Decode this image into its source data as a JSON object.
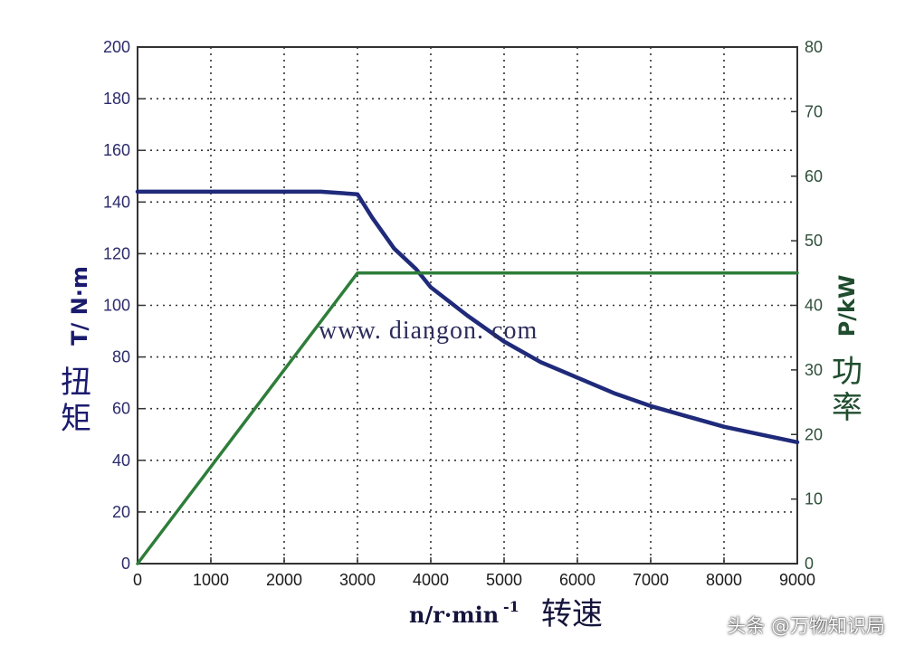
{
  "chart_data": {
    "type": "line",
    "xlabel_math": "n/r·min",
    "xlabel_sup": "-1",
    "xlabel_cn": "转速",
    "ylabel_left_cn": "扭矩",
    "ylabel_left_unit": "T/ N·m",
    "ylabel_right_cn": "功率",
    "ylabel_right_unit": "P/kW",
    "xlim": [
      0,
      9000
    ],
    "ylim_left": [
      0,
      200
    ],
    "ylim_right": [
      0,
      80
    ],
    "x_ticks": [
      "0",
      "1000",
      "2000",
      "3000",
      "4000",
      "5000",
      "6000",
      "7000",
      "8000",
      "9000"
    ],
    "y_left_ticks": [
      "0",
      "20",
      "40",
      "60",
      "80",
      "100",
      "120",
      "140",
      "160",
      "180",
      "200"
    ],
    "y_right_ticks": [
      "0",
      "10",
      "20",
      "30",
      "40",
      "50",
      "60",
      "70",
      "80"
    ],
    "grid": true,
    "series": [
      {
        "axis": "left",
        "color": "#1f2a7a",
        "x": [
          0,
          1000,
          2000,
          2500,
          3000,
          3200,
          3500,
          3800,
          4000,
          4500,
          5000,
          5500,
          6000,
          6500,
          7000,
          7500,
          8000,
          8500,
          9000
        ],
        "y": [
          144,
          144,
          144,
          144,
          143,
          134,
          122,
          114,
          107,
          96,
          86,
          78,
          72,
          66,
          61,
          57,
          53,
          50,
          47
        ]
      },
      {
        "axis": "right",
        "color": "#2e7d3a",
        "x": [
          0,
          3000,
          9000
        ],
        "y": [
          0,
          45,
          45
        ]
      }
    ]
  },
  "watermark": "www. diangon. com",
  "credit": "头条 @万物知识局"
}
